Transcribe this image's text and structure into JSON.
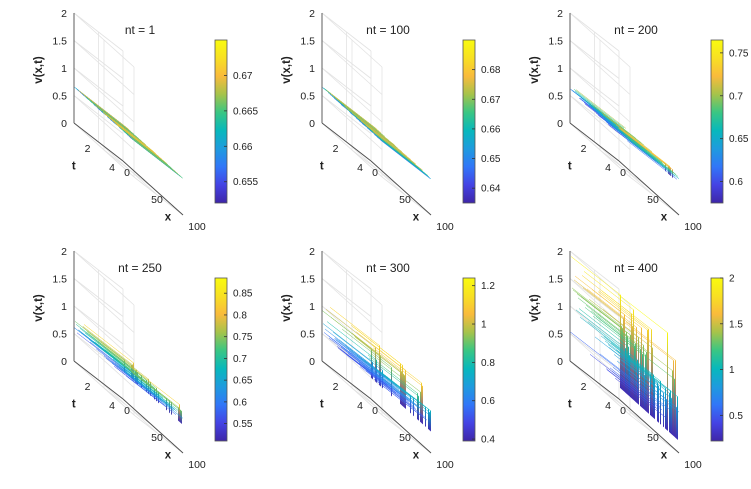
{
  "figure": {
    "description_free": true
  },
  "colormap": [
    "#3e26a8",
    "#4443e4",
    "#3176f8",
    "#1e9bde",
    "#07b8bc",
    "#3ac683",
    "#a6c34a",
    "#f9bb3c",
    "#f8e023",
    "#f9fb0e"
  ],
  "chart_data": [
    {
      "type": "surface3d",
      "title": "nt = 1",
      "xlabel": "x",
      "ylabel": "t",
      "zlabel": "v(x,t)",
      "xticks": [
        "0",
        "50",
        "100"
      ],
      "yticks": [
        "0",
        "2",
        "4"
      ],
      "zticks": [
        "0.5",
        "1",
        "1.5",
        "2"
      ],
      "xlim": [
        0,
        100
      ],
      "ylim": [
        0,
        4
      ],
      "zlim": [
        0,
        2
      ],
      "colorbar": {
        "range": [
          0.652,
          0.675
        ],
        "ticks": [
          0.655,
          0.66,
          0.665,
          0.67
        ],
        "tick_labels": [
          "0.655",
          "0.66",
          "0.665",
          "0.67"
        ]
      },
      "profile": {
        "base": 0.664,
        "amp": 0.008,
        "bumps": 0,
        "min": 0.652,
        "max": 0.675,
        "seed": 11
      }
    },
    {
      "type": "surface3d",
      "title": "nt = 100",
      "xlabel": "x",
      "ylabel": "t",
      "zlabel": "v(x,t)",
      "xticks": [
        "0",
        "50",
        "100"
      ],
      "yticks": [
        "0",
        "2",
        "4"
      ],
      "zticks": [
        "0.5",
        "1",
        "1.5",
        "2"
      ],
      "xlim": [
        0,
        100
      ],
      "ylim": [
        0,
        4
      ],
      "zlim": [
        0,
        2
      ],
      "colorbar": {
        "range": [
          0.635,
          0.69
        ],
        "ticks": [
          0.64,
          0.65,
          0.66,
          0.67,
          0.68
        ],
        "tick_labels": [
          "0.64",
          "0.65",
          "0.66",
          "0.67",
          "0.68"
        ]
      },
      "profile": {
        "base": 0.662,
        "amp": 0.018,
        "bumps": 0,
        "min": 0.635,
        "max": 0.69,
        "seed": 23
      }
    },
    {
      "type": "surface3d",
      "title": "nt = 200",
      "xlabel": "x",
      "ylabel": "t",
      "zlabel": "v(x,t)",
      "xticks": [
        "0",
        "50",
        "100"
      ],
      "yticks": [
        "0",
        "2",
        "4"
      ],
      "zticks": [
        "0.5",
        "1",
        "1.5",
        "2"
      ],
      "xlim": [
        0,
        100
      ],
      "ylim": [
        0,
        4
      ],
      "zlim": [
        0,
        2
      ],
      "colorbar": {
        "range": [
          0.575,
          0.765
        ],
        "ticks": [
          0.6,
          0.65,
          0.7,
          0.75
        ],
        "tick_labels": [
          "0.6",
          "0.65",
          "0.7",
          "0.75"
        ]
      },
      "profile": {
        "base": 0.66,
        "amp": 0.07,
        "bumps": 0.02,
        "min": 0.575,
        "max": 0.765,
        "seed": 37
      }
    },
    {
      "type": "surface3d",
      "title": "nt = 250",
      "xlabel": "x",
      "ylabel": "t",
      "zlabel": "v(x,t)",
      "xticks": [
        "0",
        "50",
        "100"
      ],
      "yticks": [
        "0",
        "2",
        "4"
      ],
      "zticks": [
        "0.5",
        "1",
        "1.5",
        "2"
      ],
      "xlim": [
        0,
        100
      ],
      "ylim": [
        0,
        4
      ],
      "zlim": [
        0,
        2
      ],
      "colorbar": {
        "range": [
          0.51,
          0.885
        ],
        "ticks": [
          0.55,
          0.6,
          0.65,
          0.7,
          0.75,
          0.8,
          0.85
        ],
        "tick_labels": [
          "0.55",
          "0.6",
          "0.65",
          "0.7",
          "0.75",
          "0.8",
          "0.85"
        ]
      },
      "profile": {
        "base": 0.66,
        "amp": 0.1,
        "bumps": 0.12,
        "min": 0.51,
        "max": 0.885,
        "seed": 41
      }
    },
    {
      "type": "surface3d",
      "title": "nt = 300",
      "xlabel": "x",
      "ylabel": "t",
      "zlabel": "v(x,t)",
      "xticks": [
        "0",
        "50",
        "100"
      ],
      "yticks": [
        "0",
        "2",
        "4"
      ],
      "zticks": [
        "0.5",
        "1",
        "1.5",
        "2"
      ],
      "xlim": [
        0,
        100
      ],
      "ylim": [
        0,
        4
      ],
      "zlim": [
        0,
        2
      ],
      "colorbar": {
        "range": [
          0.39,
          1.24
        ],
        "ticks": [
          0.4,
          0.6,
          0.8,
          1.0,
          1.2
        ],
        "tick_labels": [
          "0.4",
          "0.6",
          "0.8",
          "1",
          "1.2"
        ]
      },
      "profile": {
        "base": 0.64,
        "amp": 0.14,
        "bumps": 0.45,
        "min": 0.39,
        "max": 1.24,
        "seed": 53
      }
    },
    {
      "type": "surface3d",
      "title": "nt = 400",
      "xlabel": "x",
      "ylabel": "t",
      "zlabel": "v(x,t)",
      "xticks": [
        "0",
        "50",
        "100"
      ],
      "yticks": [
        "0",
        "2",
        "4"
      ],
      "zticks": [
        "0.5",
        "1",
        "1.5",
        "2"
      ],
      "xlim": [
        0,
        100
      ],
      "ylim": [
        0,
        4
      ],
      "zlim": [
        0,
        2
      ],
      "colorbar": {
        "range": [
          0.22,
          2.0
        ],
        "ticks": [
          0.5,
          1.0,
          1.5,
          2.0
        ],
        "tick_labels": [
          "0.5",
          "1",
          "1.5",
          "2"
        ]
      },
      "profile": {
        "base": 0.7,
        "amp": 0.35,
        "bumps": 1.3,
        "min": 0.22,
        "max": 2.0,
        "seed": 67
      }
    }
  ]
}
